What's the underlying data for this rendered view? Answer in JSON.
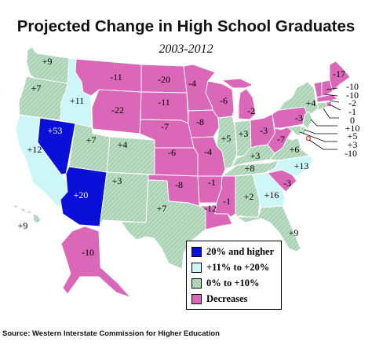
{
  "title": "Projected Change in High School Graduates",
  "subtitle": "2003-2012",
  "source": "Source: Western Interstate Commission for Higher Education",
  "categories": {
    "high": {
      "label": "20% and higher",
      "color": "#0a10d8"
    },
    "mid": {
      "label": "+11% to +20%",
      "color": "#cdf6f8"
    },
    "low": {
      "label": "0% to +10%",
      "color": "#b2d8bd"
    },
    "dec": {
      "label": "Decreases",
      "color": "#db67b9"
    }
  },
  "states": {
    "WA": {
      "value": "+9",
      "cat": "low"
    },
    "OR": {
      "value": "+7",
      "cat": "low"
    },
    "CA": {
      "value": "+12",
      "cat": "mid"
    },
    "NV": {
      "value": "+53",
      "cat": "high"
    },
    "ID": {
      "value": "+11",
      "cat": "mid"
    },
    "MT": {
      "value": "-11",
      "cat": "dec"
    },
    "WY": {
      "value": "-22",
      "cat": "dec"
    },
    "UT": {
      "value": "+7",
      "cat": "low"
    },
    "AZ": {
      "value": "+20",
      "cat": "high"
    },
    "CO": {
      "value": "+4",
      "cat": "low"
    },
    "NM": {
      "value": "+3",
      "cat": "low"
    },
    "ND": {
      "value": "-20",
      "cat": "dec"
    },
    "SD": {
      "value": "-11",
      "cat": "dec"
    },
    "NE": {
      "value": "-7",
      "cat": "dec"
    },
    "KS": {
      "value": "-6",
      "cat": "dec"
    },
    "OK": {
      "value": "-8",
      "cat": "dec"
    },
    "TX": {
      "value": "+7",
      "cat": "low"
    },
    "MN": {
      "value": "-4",
      "cat": "dec"
    },
    "IA": {
      "value": "-8",
      "cat": "dec"
    },
    "MO": {
      "value": "-4",
      "cat": "dec"
    },
    "AR": {
      "value": "-1",
      "cat": "dec"
    },
    "LA": {
      "value": "-12",
      "cat": "dec"
    },
    "WI": {
      "value": "-6",
      "cat": "dec"
    },
    "IL": {
      "value": "+5",
      "cat": "low"
    },
    "MI": {
      "value": "-2",
      "cat": "dec"
    },
    "IN": {
      "value": "+3",
      "cat": "low"
    },
    "OH": {
      "value": "-3",
      "cat": "dec"
    },
    "KY": {
      "value": "+3",
      "cat": "low"
    },
    "TN": {
      "value": "+8",
      "cat": "low"
    },
    "MS": {
      "value": "-1",
      "cat": "dec"
    },
    "AL": {
      "value": "+2",
      "cat": "low"
    },
    "GA": {
      "value": "+16",
      "cat": "mid"
    },
    "FL": {
      "value": "+9",
      "cat": "low"
    },
    "SC": {
      "value": "-3",
      "cat": "dec"
    },
    "NC": {
      "value": "+13",
      "cat": "mid"
    },
    "VA": {
      "value": "+6",
      "cat": "low"
    },
    "WV": {
      "value": "-7",
      "cat": "dec"
    },
    "PA": {
      "value": "-3",
      "cat": "dec"
    },
    "NY": {
      "value": "+4",
      "cat": "low"
    },
    "ME": {
      "value": "-17",
      "cat": "dec"
    },
    "VT": {
      "value": "-10",
      "cat": "dec"
    },
    "NH": {
      "value": "-10",
      "cat": "dec"
    },
    "MA": {
      "value": "-2",
      "cat": "dec"
    },
    "RI": {
      "value": "-1",
      "cat": "dec"
    },
    "CT": {
      "value": "0",
      "cat": "low"
    },
    "NJ": {
      "value": "+10",
      "cat": "low"
    },
    "DE": {
      "value": "+5",
      "cat": "low"
    },
    "MD": {
      "value": "+3",
      "cat": "low"
    },
    "DC": {
      "value": "-10",
      "cat": "dec"
    },
    "AK": {
      "value": "-10",
      "cat": "dec"
    },
    "HI": {
      "value": "+9",
      "cat": "low"
    }
  }
}
